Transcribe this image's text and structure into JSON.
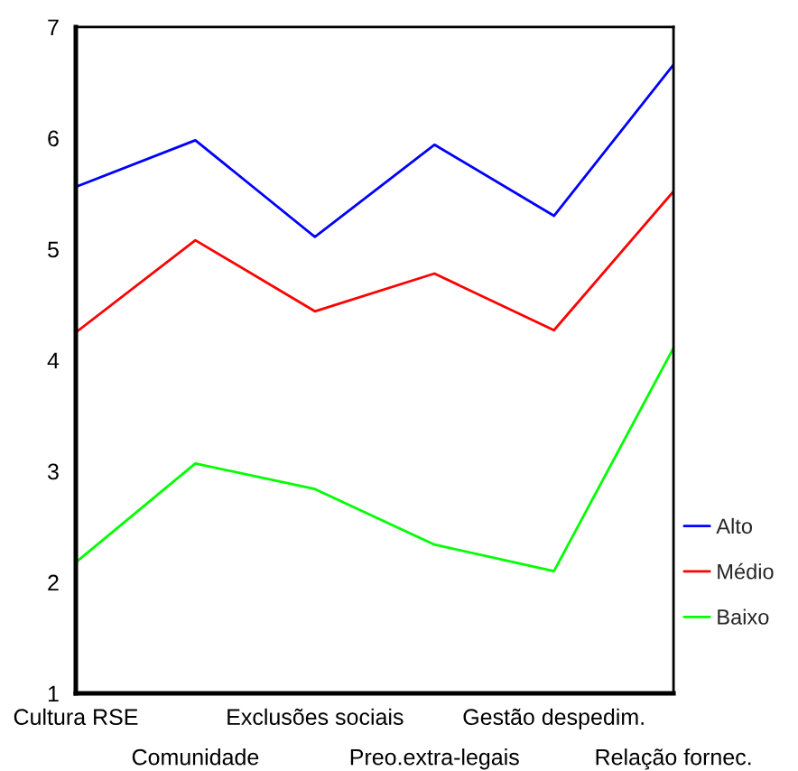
{
  "chart_data": {
    "type": "line",
    "categories": [
      "Cultura RSE",
      "Comunidade",
      "Exclusões sociais",
      "Preo.extra-legais",
      "Gestão despedim.",
      "Relação fornec."
    ],
    "series": [
      {
        "name": "Alto",
        "color": "#0000ff",
        "values": [
          5.56,
          5.98,
          5.11,
          5.94,
          5.3,
          6.66
        ]
      },
      {
        "name": "Médio",
        "color": "#ff0000",
        "values": [
          4.25,
          5.08,
          4.44,
          4.78,
          4.27,
          5.52
        ]
      },
      {
        "name": "Baixo",
        "color": "#00ff00",
        "values": [
          2.18,
          3.07,
          2.84,
          2.34,
          2.1,
          4.11
        ]
      }
    ],
    "ylim": [
      1,
      7
    ],
    "yticks": [
      1,
      2,
      3,
      4,
      5,
      6,
      7
    ],
    "grid": false,
    "legend": "right"
  }
}
